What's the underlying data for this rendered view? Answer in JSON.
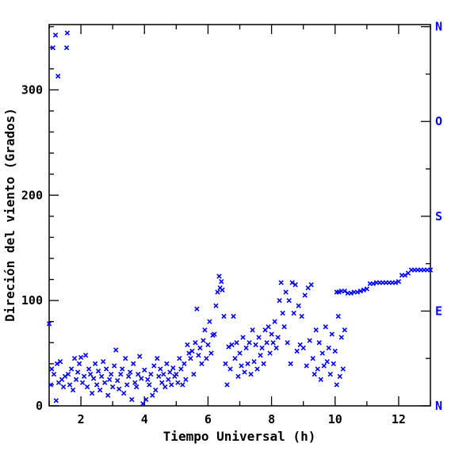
{
  "chart_data": {
    "type": "scatter",
    "title": "",
    "xlabel": "Tiempo Universal (h)",
    "ylabel": "Direción del viento (Grados)",
    "xlim": [
      1,
      13
    ],
    "ylim": [
      0,
      362
    ],
    "x_ticks": [
      2,
      4,
      6,
      8,
      10,
      12
    ],
    "y_ticks": [
      0,
      100,
      200,
      300
    ],
    "right_axis_labels": [
      {
        "label": "N",
        "value": 0
      },
      {
        "label": "E",
        "value": 90
      },
      {
        "label": "S",
        "value": 180
      },
      {
        "label": "O",
        "value": 270
      },
      {
        "label": "N",
        "value": 360
      }
    ],
    "grid": false,
    "marker": "x",
    "color": "#0000ff",
    "axis_color": "#000000",
    "right_label_color": "#0000ff",
    "series": [
      {
        "points": [
          [
            1.0,
            78
          ],
          [
            1.05,
            20
          ],
          [
            1.08,
            35
          ],
          [
            1.12,
            340
          ],
          [
            1.15,
            30
          ],
          [
            1.2,
            352
          ],
          [
            1.22,
            5
          ],
          [
            1.25,
            40
          ],
          [
            1.28,
            313
          ],
          [
            1.3,
            22
          ],
          [
            1.35,
            42
          ],
          [
            1.4,
            25
          ],
          [
            1.45,
            18
          ],
          [
            1.5,
            28
          ],
          [
            1.55,
            340
          ],
          [
            1.57,
            354
          ],
          [
            1.6,
            30
          ],
          [
            1.65,
            20
          ],
          [
            1.7,
            35
          ],
          [
            1.75,
            15
          ],
          [
            1.8,
            45
          ],
          [
            1.85,
            25
          ],
          [
            1.9,
            32
          ],
          [
            1.95,
            40
          ],
          [
            2.0,
            46
          ],
          [
            2.05,
            22
          ],
          [
            2.1,
            28
          ],
          [
            2.15,
            48
          ],
          [
            2.2,
            18
          ],
          [
            2.25,
            35
          ],
          [
            2.3,
            30
          ],
          [
            2.35,
            12
          ],
          [
            2.4,
            26
          ],
          [
            2.45,
            40
          ],
          [
            2.5,
            20
          ],
          [
            2.55,
            33
          ],
          [
            2.6,
            15
          ],
          [
            2.65,
            28
          ],
          [
            2.7,
            42
          ],
          [
            2.75,
            22
          ],
          [
            2.8,
            35
          ],
          [
            2.85,
            10
          ],
          [
            2.9,
            25
          ],
          [
            2.95,
            30
          ],
          [
            3.0,
            18
          ],
          [
            3.05,
            38
          ],
          [
            3.1,
            53
          ],
          [
            3.15,
            24
          ],
          [
            3.2,
            16
          ],
          [
            3.25,
            30
          ],
          [
            3.3,
            35
          ],
          [
            3.35,
            12
          ],
          [
            3.4,
            45
          ],
          [
            3.45,
            20
          ],
          [
            3.5,
            28
          ],
          [
            3.55,
            32
          ],
          [
            3.6,
            6
          ],
          [
            3.65,
            40
          ],
          [
            3.7,
            22
          ],
          [
            3.75,
            18
          ],
          [
            3.8,
            30
          ],
          [
            3.85,
            47
          ],
          [
            3.9,
            26
          ],
          [
            3.95,
            2
          ],
          [
            4.0,
            34
          ],
          [
            4.05,
            6
          ],
          [
            4.1,
            25
          ],
          [
            4.15,
            20
          ],
          [
            4.2,
            30
          ],
          [
            4.25,
            10
          ],
          [
            4.3,
            38
          ],
          [
            4.35,
            15
          ],
          [
            4.4,
            45
          ],
          [
            4.45,
            28
          ],
          [
            4.5,
            35
          ],
          [
            4.55,
            22
          ],
          [
            4.6,
            30
          ],
          [
            4.65,
            18
          ],
          [
            4.7,
            40
          ],
          [
            4.75,
            25
          ],
          [
            4.8,
            32
          ],
          [
            4.85,
            20
          ],
          [
            4.9,
            36
          ],
          [
            4.95,
            28
          ],
          [
            5.0,
            30
          ],
          [
            5.05,
            22
          ],
          [
            5.1,
            45
          ],
          [
            5.15,
            35
          ],
          [
            5.2,
            20
          ],
          [
            5.25,
            40
          ],
          [
            5.3,
            25
          ],
          [
            5.35,
            58
          ],
          [
            5.4,
            50
          ],
          [
            5.45,
            45
          ],
          [
            5.5,
            52
          ],
          [
            5.55,
            30
          ],
          [
            5.6,
            60
          ],
          [
            5.65,
            92
          ],
          [
            5.7,
            48
          ],
          [
            5.75,
            55
          ],
          [
            5.8,
            40
          ],
          [
            5.85,
            62
          ],
          [
            5.9,
            72
          ],
          [
            5.95,
            45
          ],
          [
            6.0,
            58
          ],
          [
            6.05,
            80
          ],
          [
            6.1,
            50
          ],
          [
            6.15,
            67
          ],
          [
            6.2,
            68
          ],
          [
            6.25,
            95
          ],
          [
            6.3,
            108
          ],
          [
            6.35,
            123
          ],
          [
            6.38,
            112
          ],
          [
            6.42,
            118
          ],
          [
            6.45,
            110
          ],
          [
            6.5,
            85
          ],
          [
            6.55,
            40
          ],
          [
            6.6,
            20
          ],
          [
            6.65,
            56
          ],
          [
            6.7,
            35
          ],
          [
            6.75,
            58
          ],
          [
            6.8,
            85
          ],
          [
            6.85,
            45
          ],
          [
            6.9,
            60
          ],
          [
            6.95,
            28
          ],
          [
            7.0,
            50
          ],
          [
            7.05,
            38
          ],
          [
            7.1,
            65
          ],
          [
            7.15,
            32
          ],
          [
            7.2,
            55
          ],
          [
            7.25,
            40
          ],
          [
            7.3,
            60
          ],
          [
            7.35,
            30
          ],
          [
            7.4,
            72
          ],
          [
            7.45,
            42
          ],
          [
            7.5,
            58
          ],
          [
            7.55,
            35
          ],
          [
            7.6,
            65
          ],
          [
            7.65,
            48
          ],
          [
            7.7,
            55
          ],
          [
            7.75,
            40
          ],
          [
            7.8,
            72
          ],
          [
            7.85,
            60
          ],
          [
            7.9,
            75
          ],
          [
            7.95,
            50
          ],
          [
            8.0,
            68
          ],
          [
            8.05,
            60
          ],
          [
            8.1,
            80
          ],
          [
            8.15,
            55
          ],
          [
            8.2,
            65
          ],
          [
            8.25,
            100
          ],
          [
            8.3,
            117
          ],
          [
            8.35,
            88
          ],
          [
            8.4,
            75
          ],
          [
            8.45,
            108
          ],
          [
            8.5,
            60
          ],
          [
            8.55,
            100
          ],
          [
            8.6,
            40
          ],
          [
            8.65,
            117
          ],
          [
            8.7,
            88
          ],
          [
            8.75,
            115
          ],
          [
            8.8,
            52
          ],
          [
            8.85,
            95
          ],
          [
            8.9,
            58
          ],
          [
            8.95,
            85
          ],
          [
            9.0,
            55
          ],
          [
            9.05,
            105
          ],
          [
            9.1,
            38
          ],
          [
            9.15,
            112
          ],
          [
            9.2,
            62
          ],
          [
            9.25,
            115
          ],
          [
            9.3,
            45
          ],
          [
            9.35,
            30
          ],
          [
            9.4,
            72
          ],
          [
            9.45,
            35
          ],
          [
            9.5,
            60
          ],
          [
            9.55,
            25
          ],
          [
            9.6,
            50
          ],
          [
            9.65,
            38
          ],
          [
            9.7,
            75
          ],
          [
            9.75,
            42
          ],
          [
            9.8,
            55
          ],
          [
            9.85,
            30
          ],
          [
            9.9,
            68
          ],
          [
            9.95,
            40
          ],
          [
            10.0,
            52
          ],
          [
            10.05,
            20
          ],
          [
            10.1,
            85
          ],
          [
            10.15,
            28
          ],
          [
            10.2,
            65
          ],
          [
            10.25,
            35
          ],
          [
            10.3,
            72
          ],
          [
            10.05,
            108
          ],
          [
            10.12,
            108
          ],
          [
            10.2,
            109
          ],
          [
            10.3,
            109
          ],
          [
            10.4,
            107
          ],
          [
            10.5,
            107
          ],
          [
            10.6,
            108
          ],
          [
            10.7,
            108
          ],
          [
            10.8,
            109
          ],
          [
            10.9,
            110
          ],
          [
            11.0,
            111
          ],
          [
            11.1,
            116
          ],
          [
            11.2,
            116
          ],
          [
            11.3,
            117
          ],
          [
            11.4,
            117
          ],
          [
            11.5,
            117
          ],
          [
            11.6,
            117
          ],
          [
            11.7,
            117
          ],
          [
            11.8,
            117
          ],
          [
            11.9,
            117
          ],
          [
            12.0,
            118
          ],
          [
            12.1,
            124
          ],
          [
            12.2,
            124
          ],
          [
            12.3,
            126
          ],
          [
            12.4,
            129
          ],
          [
            12.5,
            129
          ],
          [
            12.6,
            129
          ],
          [
            12.7,
            129
          ],
          [
            12.8,
            129
          ],
          [
            12.9,
            129
          ],
          [
            13.0,
            129
          ]
        ]
      }
    ]
  }
}
